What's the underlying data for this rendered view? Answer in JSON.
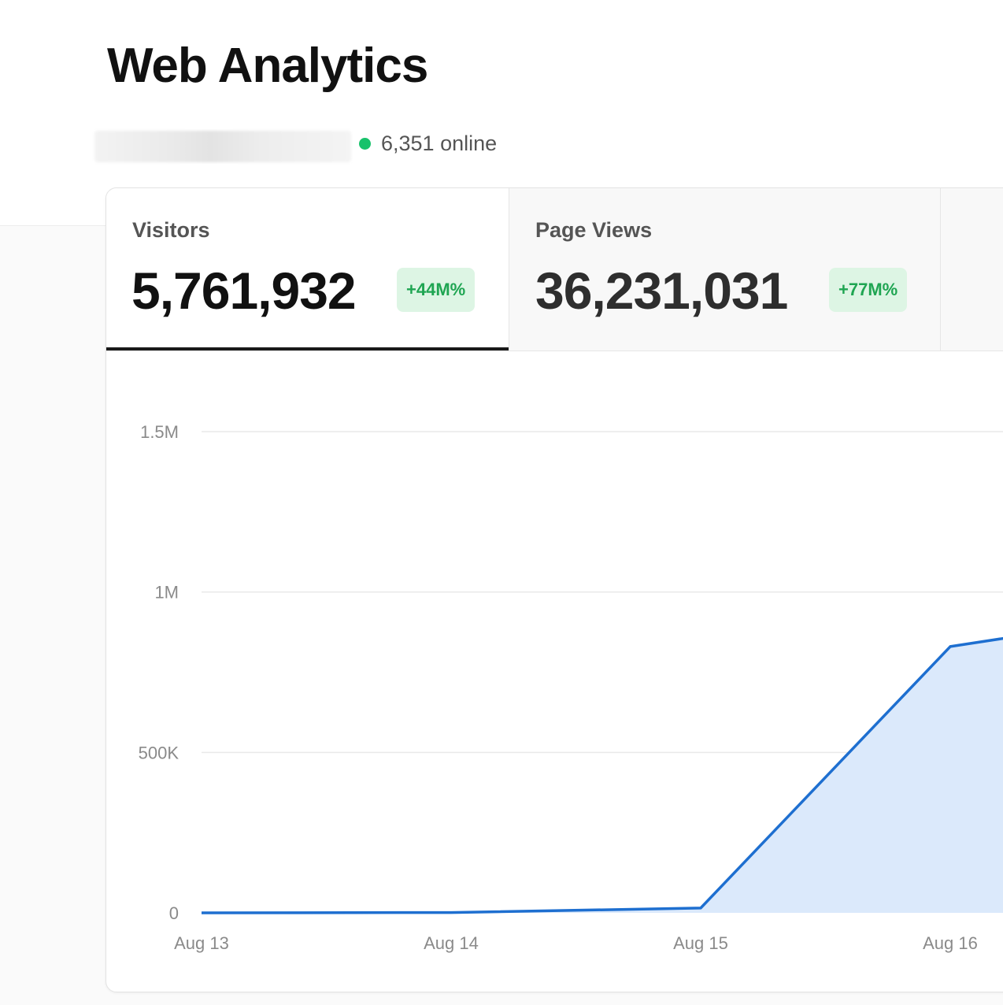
{
  "header": {
    "title": "Web Analytics",
    "online_count": "6,351 online",
    "online_color": "#18c26b"
  },
  "tabs": [
    {
      "label": "Visitors",
      "value": "5,761,932",
      "change": "+44M%",
      "active": true
    },
    {
      "label": "Page Views",
      "value": "36,231,031",
      "change": "+77M%",
      "active": false
    }
  ],
  "colors": {
    "line": "#1e6fd0",
    "area_fill": "#dbe9fb",
    "badge_bg": "#ddf5e4",
    "badge_text": "#1fa552",
    "active_tab_underline": "#1a1a1a"
  },
  "chart_data": {
    "type": "area",
    "x": [
      "Aug 13",
      "Aug 14",
      "Aug 15",
      "Aug 16"
    ],
    "x_tick_labels": [
      "Aug 13",
      "Aug 14",
      "Aug 15",
      "Aug 16"
    ],
    "y_tick_labels": [
      "0",
      "500K",
      "1M",
      "1.5M"
    ],
    "y_ticks": [
      0,
      500000,
      1000000,
      1500000
    ],
    "ylim": [
      0,
      1500000
    ],
    "grid": true,
    "series": [
      {
        "values": [
          0,
          1000,
          15000,
          830000
        ],
        "partial_next_value": 950000
      }
    ]
  }
}
